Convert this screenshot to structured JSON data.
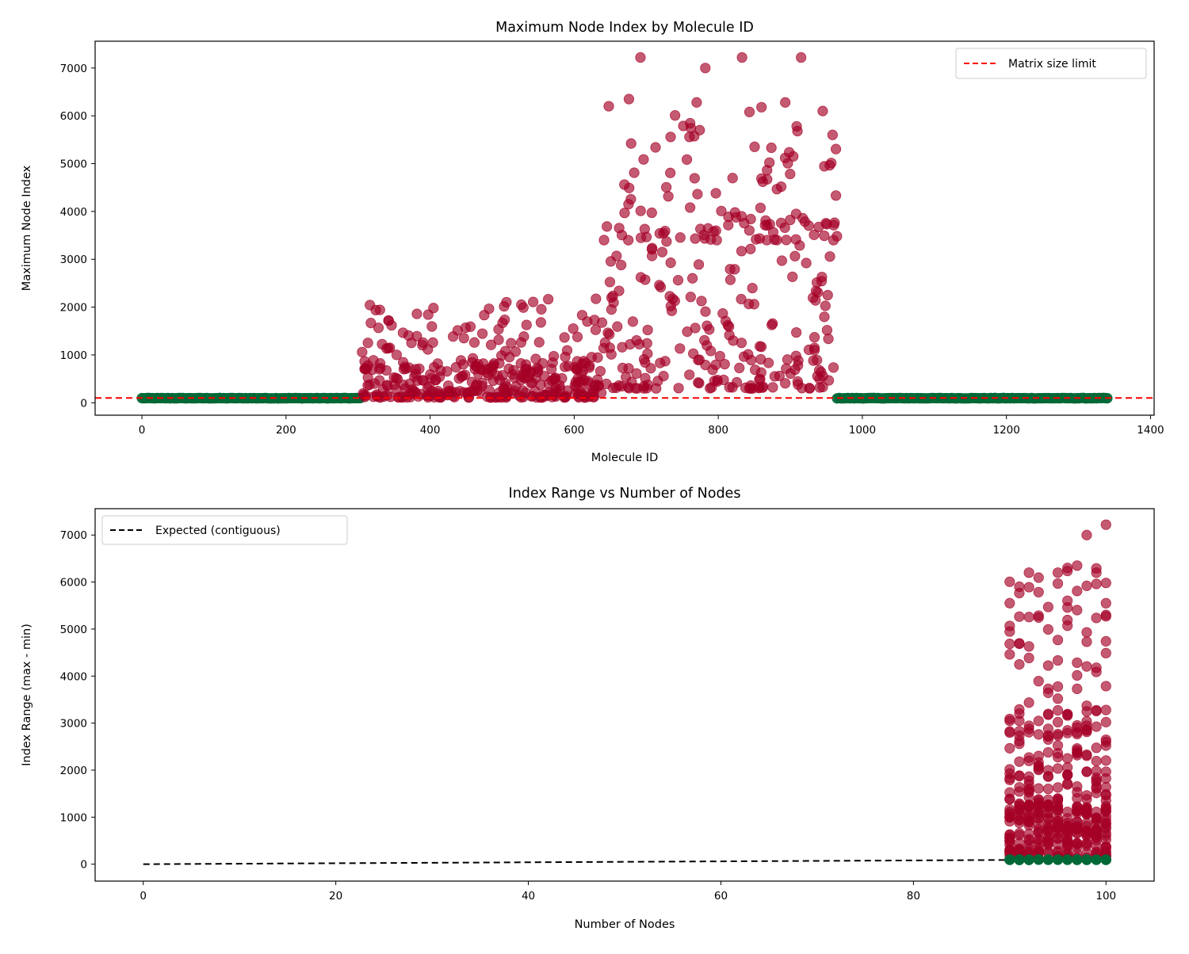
{
  "colors": {
    "invalid": "#a50026",
    "valid": "#006837",
    "limit_line": "#ff0000",
    "expected_line": "#000000"
  },
  "chart_data": [
    {
      "id": "top",
      "type": "scatter",
      "title": "Maximum Node Index by Molecule ID",
      "xlabel": "Molecule ID",
      "ylabel": "Maximum Node Index",
      "xlim": [
        -65,
        1405
      ],
      "ylim": [
        -260,
        7560
      ],
      "xticks": [
        0,
        200,
        400,
        600,
        800,
        1000,
        1200,
        1400
      ],
      "yticks": [
        0,
        1000,
        2000,
        3000,
        4000,
        5000,
        6000,
        7000
      ],
      "legend": {
        "position": "top-right",
        "label": "Matrix size limit"
      },
      "reference_line": {
        "y": 100,
        "style": "dashed",
        "color": "#ff0000",
        "label": "Matrix size limit"
      },
      "series": [
        {
          "color": "#006837",
          "alpha": 0.9,
          "segments": [
            {
              "x_start": 0,
              "x_end": 305,
              "y_min": 90,
              "y_max": 100
            },
            {
              "x_start": 965,
              "x_end": 1340,
              "y_min": 90,
              "y_max": 100
            }
          ]
        },
        {
          "color": "#a50026",
          "alpha": 0.65,
          "clusters": [
            {
              "x_start": 305,
              "x_end": 640,
              "y_min": 110,
              "y_max": 700,
              "count": 220
            },
            {
              "x_start": 305,
              "x_end": 640,
              "y_min": 700,
              "y_max": 2300,
              "count": 130
            },
            {
              "x_start": 640,
              "x_end": 965,
              "y_min": 300,
              "y_max": 3400,
              "count": 190
            },
            {
              "x_start": 640,
              "x_end": 965,
              "y_min": 3400,
              "y_max": 6300,
              "count": 110
            }
          ],
          "points": [
            [
              692,
              7220
            ],
            [
              833,
              7220
            ],
            [
              915,
              7220
            ],
            [
              782,
              7000
            ],
            [
              676,
              6350
            ],
            [
              945,
              6100
            ],
            [
              648,
              6200
            ],
            [
              893,
              6280
            ],
            [
              770,
              6280
            ],
            [
              860,
              6180
            ]
          ]
        }
      ]
    },
    {
      "id": "bottom",
      "type": "scatter",
      "title": "Index Range vs Number of Nodes",
      "xlabel": "Number of Nodes",
      "ylabel": "Index Range (max - min)",
      "xlim": [
        -5,
        105
      ],
      "ylim": [
        -360,
        7560
      ],
      "xticks": [
        0,
        20,
        40,
        60,
        80,
        100
      ],
      "yticks": [
        0,
        1000,
        2000,
        3000,
        4000,
        5000,
        6000,
        7000
      ],
      "legend": {
        "position": "top-left",
        "label": "Expected (contiguous)"
      },
      "reference_line": {
        "points": [
          [
            0,
            0
          ],
          [
            100,
            100
          ]
        ],
        "style": "dashed",
        "color": "#000000",
        "label": "Expected (contiguous)"
      },
      "x_values": [
        90,
        91,
        92,
        93,
        94,
        95,
        96,
        97,
        98,
        99,
        100
      ],
      "series": [
        {
          "color": "#006837",
          "alpha": 0.9,
          "y_min": 90,
          "y_max": 100
        },
        {
          "color": "#a50026",
          "alpha": 0.65,
          "dense_range": [
            120,
            1300
          ],
          "mid_range": [
            1300,
            3300
          ],
          "sparse_range": [
            3300,
            6300
          ],
          "points": [
            [
              100,
              7220
            ],
            [
              98,
              7000
            ],
            [
              96,
              6300
            ],
            [
              97,
              6350
            ],
            [
              92,
              6200
            ],
            [
              99,
              6200
            ],
            [
              95,
              6200
            ],
            [
              91,
              5900
            ],
            [
              90,
              5550
            ],
            [
              100,
              5550
            ],
            [
              100,
              5300
            ]
          ]
        }
      ]
    }
  ]
}
